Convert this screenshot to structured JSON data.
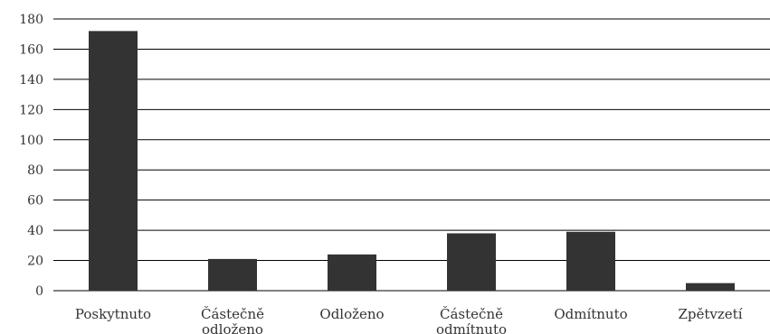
{
  "chart_data": {
    "type": "bar",
    "title": "",
    "xlabel": "",
    "ylabel": "",
    "categories": [
      [
        "Poskytnuto"
      ],
      [
        "Částečně",
        "odloženo"
      ],
      [
        "Odloženo"
      ],
      [
        "Částečně",
        "odmítnuto"
      ],
      [
        "Odmítnuto"
      ],
      [
        "Zpětvzetí"
      ]
    ],
    "values": [
      172,
      21,
      24,
      38,
      39,
      5
    ],
    "ylim": [
      0,
      180
    ],
    "yticks": [
      "0",
      "20",
      "40",
      "60",
      "80",
      "100",
      "120",
      "140",
      "160",
      "180"
    ],
    "grid": "horizontal",
    "legend": "none",
    "colors": {
      "bar": "#333333",
      "grid": "#000000",
      "text": "#333333"
    }
  }
}
